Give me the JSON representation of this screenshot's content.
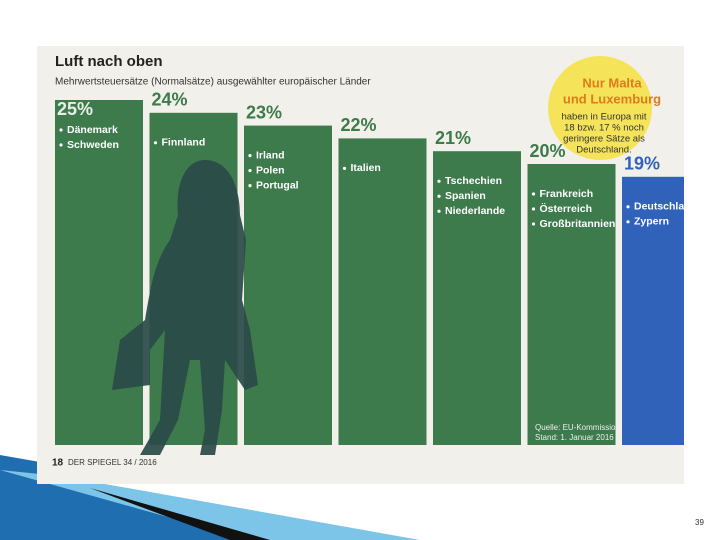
{
  "chart_data": {
    "type": "bar",
    "title": "Luft nach oben",
    "subtitle": "Mehrwertsteuersätze (Normalsätze) ausgewählter europäischer Länder",
    "values": [
      25,
      24,
      23,
      22,
      21,
      20,
      19
    ],
    "value_labels": [
      "25%",
      "24%",
      "23%",
      "22%",
      "21%",
      "20%",
      "19%"
    ],
    "groups": [
      [
        "Dänemark",
        "Schweden"
      ],
      [
        "Finnland"
      ],
      [
        "Irland",
        "Polen",
        "Portugal"
      ],
      [
        "Italien"
      ],
      [
        "Tschechien",
        "Spanien",
        "Niederlande"
      ],
      [
        "Frankreich",
        "Österreich",
        "Großbritannien"
      ],
      [
        "Deutschland",
        "Zypern"
      ]
    ],
    "colors": [
      "#3d7a4c",
      "#3d7a4c",
      "#3d7a4c",
      "#3d7a4c",
      "#3d7a4c",
      "#3d7a4c",
      "#2f62b8"
    ],
    "annotation": {
      "title": [
        "Nur Malta",
        "und Luxemburg"
      ],
      "text": [
        "haben in Europa mit",
        "18 bzw. 17 % noch",
        "geringere Sätze als",
        "Deutschland."
      ]
    },
    "source": [
      "Quelle: EU-Kommission;",
      "Stand: 1. Januar 2016"
    ],
    "footer": {
      "page": "18",
      "magazine": "DER SPIEGEL 34 / 2016"
    }
  },
  "slide_number": "39"
}
